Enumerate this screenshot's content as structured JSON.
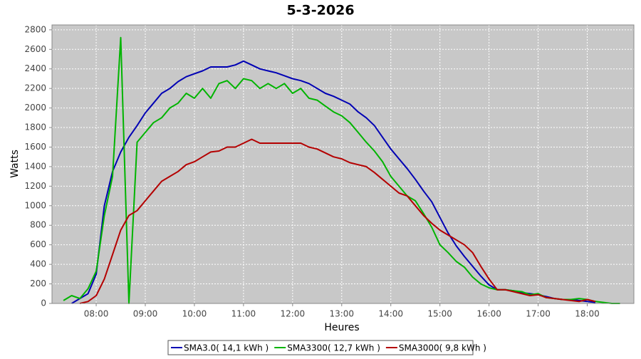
{
  "chart_data": {
    "type": "line",
    "title": "5-3-2026",
    "x_label": "Heures",
    "y_label": "Watts",
    "x": [
      "07:20",
      "07:30",
      "07:40",
      "07:50",
      "08:00",
      "08:10",
      "08:20",
      "08:30",
      "08:40",
      "08:50",
      "09:00",
      "09:10",
      "09:20",
      "09:30",
      "09:40",
      "09:50",
      "10:00",
      "10:10",
      "10:20",
      "10:30",
      "10:40",
      "10:50",
      "11:00",
      "11:10",
      "11:20",
      "11:30",
      "11:40",
      "11:50",
      "12:00",
      "12:10",
      "12:20",
      "12:30",
      "12:40",
      "12:50",
      "13:00",
      "13:10",
      "13:20",
      "13:30",
      "13:40",
      "13:50",
      "14:00",
      "14:10",
      "14:20",
      "14:30",
      "14:40",
      "14:50",
      "15:00",
      "15:10",
      "15:20",
      "15:30",
      "15:40",
      "15:50",
      "16:00",
      "16:10",
      "16:20",
      "16:30",
      "16:40",
      "16:50",
      "17:00",
      "17:10",
      "17:20",
      "17:30",
      "17:40",
      "17:50",
      "18:00",
      "18:10",
      "18:20",
      "18:30",
      "18:40"
    ],
    "series": [
      {
        "name": "SMA3.0( 14,1 kWh )",
        "color": "#0000b4",
        "values": [
          null,
          0,
          50,
          100,
          300,
          1000,
          1350,
          1550,
          1700,
          1820,
          1950,
          2050,
          2150,
          2200,
          2270,
          2320,
          2350,
          2380,
          2420,
          2420,
          2420,
          2440,
          2480,
          2440,
          2400,
          2380,
          2360,
          2330,
          2300,
          2280,
          2250,
          2200,
          2150,
          2120,
          2080,
          2040,
          1960,
          1900,
          1820,
          1700,
          1580,
          1480,
          1380,
          1270,
          1150,
          1040,
          880,
          720,
          590,
          480,
          380,
          280,
          190,
          140,
          140,
          130,
          110,
          100,
          90,
          70,
          50,
          40,
          40,
          30,
          20,
          10,
          null,
          null,
          null
        ]
      },
      {
        "name": "SMA3300( 12,7 kWh )",
        "color": "#00b400",
        "values": [
          30,
          80,
          50,
          150,
          330,
          900,
          1300,
          2720,
          0,
          1650,
          1750,
          1850,
          1900,
          2000,
          2050,
          2150,
          2100,
          2200,
          2100,
          2250,
          2280,
          2200,
          2300,
          2280,
          2200,
          2250,
          2200,
          2250,
          2150,
          2200,
          2100,
          2080,
          2020,
          1960,
          1920,
          1850,
          1750,
          1650,
          1560,
          1450,
          1300,
          1200,
          1100,
          1050,
          920,
          780,
          600,
          520,
          430,
          370,
          270,
          200,
          160,
          140,
          140,
          130,
          120,
          90,
          100,
          60,
          50,
          40,
          40,
          50,
          40,
          20,
          10,
          0,
          0
        ]
      },
      {
        "name": "SMA3000( 9,8 kWh )",
        "color": "#b40000",
        "values": [
          null,
          null,
          0,
          20,
          80,
          250,
          500,
          750,
          900,
          950,
          1050,
          1150,
          1250,
          1300,
          1350,
          1420,
          1450,
          1500,
          1550,
          1560,
          1600,
          1600,
          1640,
          1680,
          1640,
          1640,
          1640,
          1640,
          1640,
          1640,
          1600,
          1580,
          1540,
          1500,
          1480,
          1440,
          1420,
          1400,
          1340,
          1270,
          1200,
          1130,
          1100,
          1000,
          900,
          820,
          750,
          700,
          650,
          600,
          520,
          380,
          250,
          140,
          140,
          120,
          100,
          80,
          90,
          60,
          50,
          40,
          30,
          20,
          40,
          20,
          null,
          null,
          null
        ]
      }
    ],
    "xlim": [
      "07:06",
      "18:57"
    ],
    "xticks": [
      "08:00",
      "09:00",
      "10:00",
      "11:00",
      "12:00",
      "13:00",
      "14:00",
      "15:00",
      "16:00",
      "17:00",
      "18:00"
    ],
    "ylim": [
      0,
      2850
    ],
    "yticks": [
      0,
      200,
      400,
      600,
      800,
      1000,
      1200,
      1400,
      1600,
      1800,
      2000,
      2200,
      2400,
      2600,
      2800
    ],
    "grid": true,
    "legend": "bottom"
  }
}
